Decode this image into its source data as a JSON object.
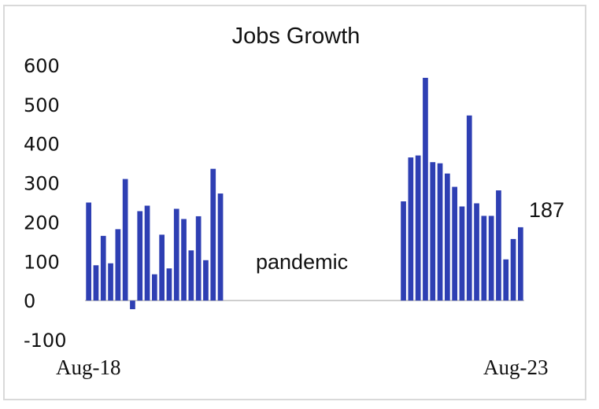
{
  "chart_data": {
    "type": "bar",
    "title": "Jobs Growth",
    "xlabel": "",
    "ylabel": "",
    "ylim": [
      -100,
      600
    ],
    "yticks": [
      "-100",
      "0",
      "100",
      "200",
      "300",
      "400",
      "500",
      "600"
    ],
    "x_start_label": "Aug-18",
    "x_end_label": "Aug-23",
    "annotation": "pandemic",
    "last_value_label": "187",
    "bar_color": "#2e3fb3",
    "grid": false,
    "values": [
      250,
      90,
      165,
      95,
      182,
      310,
      -22,
      228,
      242,
      67,
      168,
      82,
      234,
      208,
      128,
      215,
      103,
      336,
      273,
      null,
      null,
      null,
      null,
      null,
      null,
      null,
      null,
      null,
      null,
      null,
      null,
      null,
      null,
      null,
      null,
      null,
      null,
      null,
      null,
      null,
      null,
      null,
      null,
      253,
      365,
      370,
      568,
      353,
      350,
      324,
      290,
      240,
      472,
      248,
      216,
      216,
      281,
      105,
      157,
      187
    ]
  }
}
